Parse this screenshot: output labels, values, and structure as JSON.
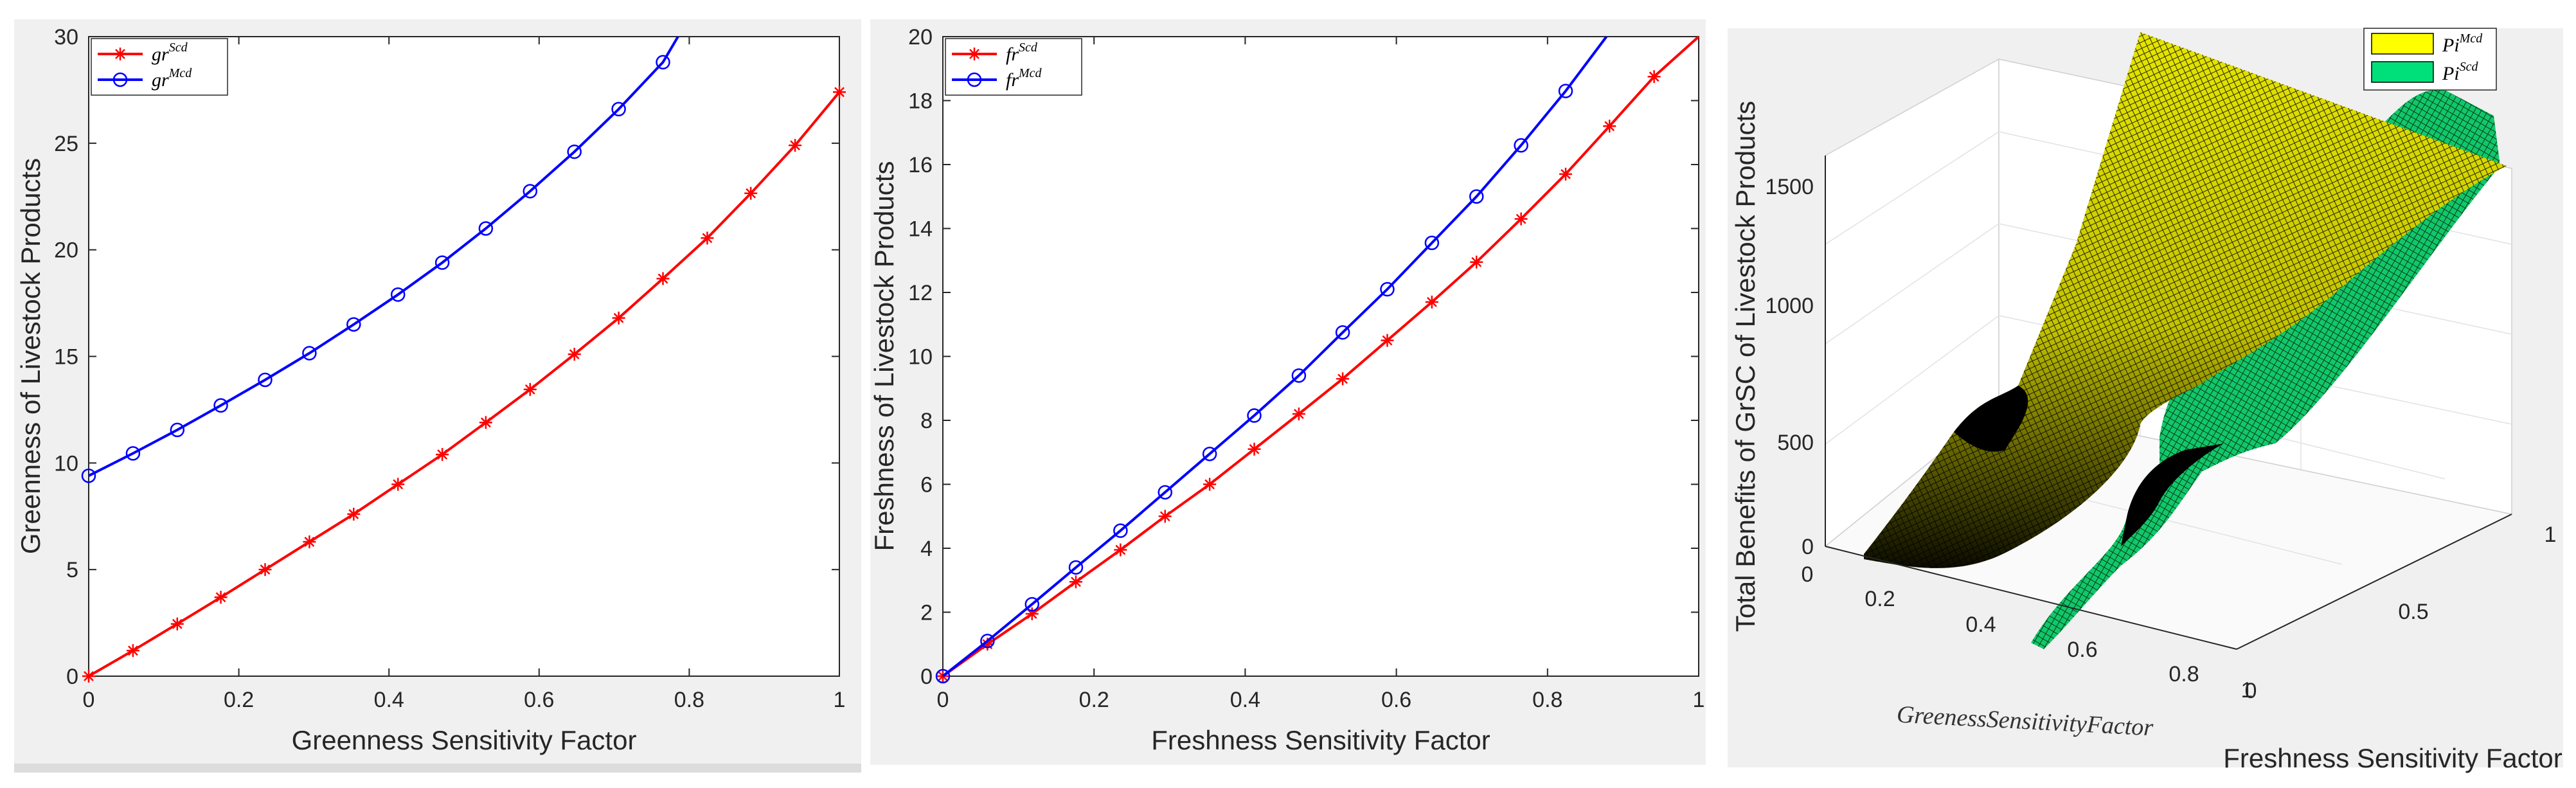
{
  "chart_data": [
    {
      "type": "line",
      "xlabel": "Greenness Sensitivity Factor",
      "ylabel": "Greenness of Livestock Products",
      "xlim": [
        0,
        1
      ],
      "ylim": [
        0,
        30
      ],
      "x_ticks": [
        "0",
        "0.2",
        "0.4",
        "0.6",
        "0.8",
        "1"
      ],
      "y_ticks": [
        "0",
        "5",
        "10",
        "15",
        "20",
        "25",
        "30"
      ],
      "legend_placement": "top-left",
      "series": [
        {
          "name_base": "gr",
          "name_sup": "Scd",
          "color": "#ff0000",
          "marker": "asterisk",
          "x": [
            0,
            0.059,
            0.118,
            0.176,
            0.235,
            0.294,
            0.353,
            0.412,
            0.471,
            0.529,
            0.588,
            0.647,
            0.706,
            0.765,
            0.824,
            0.882,
            0.941,
            1.0
          ],
          "y": [
            0,
            1.2,
            2.45,
            3.7,
            5.0,
            6.3,
            7.6,
            9.0,
            10.4,
            11.9,
            13.45,
            15.1,
            16.8,
            18.65,
            20.55,
            22.65,
            24.9,
            27.4
          ]
        },
        {
          "name_base": "gr",
          "name_sup": "Mcd",
          "color": "#0000ff",
          "marker": "circle",
          "x": [
            0,
            0.059,
            0.118,
            0.176,
            0.235,
            0.294,
            0.353,
            0.412,
            0.471,
            0.529,
            0.588,
            0.647,
            0.706,
            0.765,
            0.785
          ],
          "y": [
            9.4,
            10.45,
            11.55,
            12.7,
            13.9,
            15.15,
            16.5,
            17.9,
            19.4,
            21.0,
            22.75,
            24.6,
            26.6,
            28.8,
            30.0
          ]
        }
      ]
    },
    {
      "type": "line",
      "xlabel": "Freshness Sensitivity Factor",
      "ylabel": "Freshness of Livestock Products",
      "xlim": [
        0,
        1
      ],
      "ylim": [
        0,
        20
      ],
      "x_ticks": [
        "0",
        "0.2",
        "0.4",
        "0.6",
        "0.8",
        "1"
      ],
      "y_ticks": [
        "0",
        "2",
        "4",
        "6",
        "8",
        "10",
        "12",
        "14",
        "16",
        "18",
        "20"
      ],
      "legend_placement": "top-left",
      "series": [
        {
          "name_base": "fr",
          "name_sup": "Scd",
          "color": "#ff0000",
          "marker": "asterisk",
          "x": [
            0,
            0.059,
            0.118,
            0.176,
            0.235,
            0.294,
            0.353,
            0.412,
            0.471,
            0.529,
            0.588,
            0.647,
            0.706,
            0.765,
            0.824,
            0.882,
            0.941,
            1.0
          ],
          "y": [
            0,
            1.0,
            1.95,
            2.95,
            3.95,
            5.0,
            6.0,
            7.1,
            8.2,
            9.3,
            10.5,
            11.7,
            12.95,
            14.3,
            15.7,
            17.2,
            18.75,
            20.0
          ]
        },
        {
          "name_base": "fr",
          "name_sup": "Mcd",
          "color": "#0000ff",
          "marker": "circle",
          "x": [
            0,
            0.059,
            0.118,
            0.176,
            0.235,
            0.294,
            0.353,
            0.412,
            0.471,
            0.529,
            0.588,
            0.647,
            0.706,
            0.765,
            0.824,
            0.878
          ],
          "y": [
            0,
            1.1,
            2.25,
            3.4,
            4.55,
            5.75,
            6.95,
            8.15,
            9.4,
            10.75,
            12.1,
            13.55,
            15.0,
            16.6,
            18.3,
            20.0
          ]
        }
      ]
    },
    {
      "type": "surface",
      "xlabel": "GreenessSensitivityFactor",
      "ylabel": "Freshness Sensitivity Factor",
      "zlabel": "Total Benefits of GrSC of Livestock Products",
      "x_ticks": [
        "0.2",
        "0.4",
        "0.6",
        "0.8",
        "1"
      ],
      "x_tick_zero": "0",
      "y_ticks": [
        "0",
        "0.5",
        "1"
      ],
      "z_ticks": [
        "0",
        "500",
        "1000",
        "1500"
      ],
      "legend_placement": "top-right",
      "series": [
        {
          "name_base": "Pi",
          "name_sup": "Mcd",
          "color": "#ffff00"
        },
        {
          "name_base": "Pi",
          "name_sup": "Scd",
          "color": "#00e07a"
        }
      ]
    }
  ]
}
